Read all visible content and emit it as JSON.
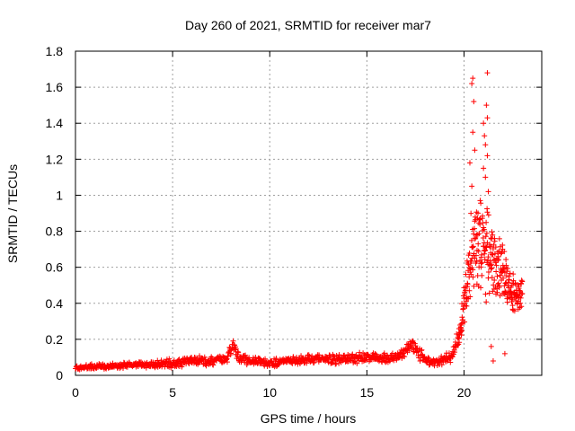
{
  "chart_data": {
    "type": "scatter",
    "title": "Day 260 of 2021, SRMTID for receiver mar7",
    "xlabel": "GPS time / hours",
    "ylabel": "SRMTID / TECUs",
    "xlim": [
      0,
      24
    ],
    "ylim": [
      0,
      1.8
    ],
    "x_ticks": [
      0,
      5,
      10,
      15,
      20
    ],
    "y_ticks": [
      0,
      0.2,
      0.4,
      0.6,
      0.8,
      1,
      1.2,
      1.4,
      1.6,
      1.8
    ],
    "x_tick_labels": [
      "0",
      "5",
      "10",
      "15",
      "20"
    ],
    "y_tick_labels": [
      "0",
      "0.2",
      "0.4",
      "0.6",
      "0.8",
      "1",
      "1.2",
      "1.4",
      "1.6",
      "1.8"
    ],
    "grid": true,
    "marker": "+",
    "color": "#ff0000",
    "series": [
      {
        "name": "SRMTID",
        "profile_x": [
          0,
          1,
          2,
          3,
          4,
          5,
          6,
          7,
          7.8,
          8.1,
          8.4,
          9,
          10,
          11,
          12,
          13,
          14,
          15,
          16,
          16.8,
          17.3,
          17.7,
          18.2,
          18.8,
          19.3,
          19.7,
          20,
          20.4,
          21,
          21.5,
          22,
          22.5,
          23
        ],
        "profile_y": [
          0.04,
          0.05,
          0.05,
          0.06,
          0.06,
          0.07,
          0.08,
          0.08,
          0.1,
          0.17,
          0.1,
          0.08,
          0.07,
          0.08,
          0.09,
          0.09,
          0.09,
          0.1,
          0.09,
          0.12,
          0.17,
          0.12,
          0.07,
          0.08,
          0.1,
          0.2,
          0.4,
          0.7,
          0.7,
          0.65,
          0.55,
          0.45,
          0.45
        ],
        "spread_y": [
          0.015,
          0.02,
          0.02,
          0.02,
          0.025,
          0.03,
          0.03,
          0.03,
          0.03,
          0.04,
          0.03,
          0.03,
          0.03,
          0.03,
          0.03,
          0.03,
          0.03,
          0.035,
          0.035,
          0.035,
          0.04,
          0.04,
          0.03,
          0.03,
          0.04,
          0.06,
          0.15,
          0.3,
          0.3,
          0.25,
          0.2,
          0.13,
          0.1
        ],
        "notable_points": [
          {
            "x": 20.45,
            "y": 1.65
          },
          {
            "x": 20.4,
            "y": 1.62
          },
          {
            "x": 20.5,
            "y": 1.52
          },
          {
            "x": 20.45,
            "y": 1.35
          },
          {
            "x": 20.55,
            "y": 1.25
          },
          {
            "x": 20.3,
            "y": 1.18
          },
          {
            "x": 20.4,
            "y": 1.05
          },
          {
            "x": 21.2,
            "y": 1.68
          },
          {
            "x": 21.15,
            "y": 1.5
          },
          {
            "x": 21.2,
            "y": 1.43
          },
          {
            "x": 21.0,
            "y": 1.4
          },
          {
            "x": 21.05,
            "y": 1.33
          },
          {
            "x": 21.1,
            "y": 1.28
          },
          {
            "x": 21.2,
            "y": 1.22
          },
          {
            "x": 21.0,
            "y": 1.15
          },
          {
            "x": 21.1,
            "y": 1.1
          },
          {
            "x": 21.25,
            "y": 1.02
          },
          {
            "x": 21.5,
            "y": 0.08
          },
          {
            "x": 21.4,
            "y": 0.16
          },
          {
            "x": 22.1,
            "y": 0.12
          }
        ]
      }
    ]
  }
}
